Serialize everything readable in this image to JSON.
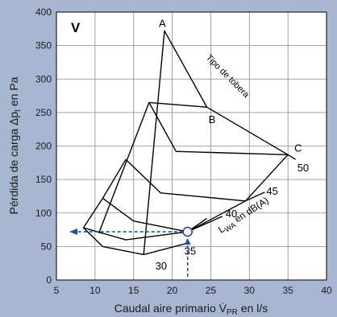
{
  "chart_data": {
    "type": "line",
    "panel_label": "V",
    "xlabel": "Caudal aire primario V̇",
    "xlabel_sub": "PR",
    "xlabel_unit": " en l/s",
    "ylabel": "Pérdida de carga Δp",
    "ylabel_sub": "t",
    "ylabel_unit": " en Pa",
    "xlim": [
      5,
      40
    ],
    "ylim": [
      0,
      400
    ],
    "xticks": [
      5,
      10,
      15,
      20,
      25,
      30,
      35,
      40
    ],
    "yticks": [
      0,
      50,
      100,
      150,
      200,
      250,
      300,
      350,
      400
    ],
    "grid": true,
    "nozzle_label": "Tipo de tobera",
    "noise_label_prefix": "L",
    "noise_label_sub": "WA",
    "noise_label_suffix": " en dB(A)",
    "nozzle_types": [
      {
        "name": "A",
        "x": 19,
        "y": 372
      },
      {
        "name": "B",
        "x": 24.5,
        "y": 258
      },
      {
        "name": "C",
        "x": 35,
        "y": 187
      }
    ],
    "nozzle_curves": [
      {
        "points": [
          [
            16.3,
            38
          ],
          [
            19,
            372
          ],
          [
            24.5,
            258
          ],
          [
            35,
            187
          ],
          [
            29.5,
            118
          ],
          [
            22,
            72
          ]
        ]
      },
      {
        "points": [
          [
            10.5,
            70
          ],
          [
            17,
            265
          ],
          [
            24.5,
            258
          ]
        ]
      },
      {
        "points": [
          [
            11,
            50
          ],
          [
            8.5,
            78
          ],
          [
            11,
            122
          ],
          [
            14,
            180
          ]
        ]
      }
    ],
    "noise_levels": [
      {
        "label": "30",
        "points": [
          [
            11,
            50
          ],
          [
            16.3,
            38
          ],
          [
            22,
            55
          ]
        ]
      },
      {
        "label": "35",
        "points": [
          [
            8.5,
            78
          ],
          [
            14,
            60
          ],
          [
            22,
            72
          ],
          [
            24.5,
            92
          ]
        ]
      },
      {
        "label": "40",
        "points": [
          [
            11,
            122
          ],
          [
            15,
            88
          ],
          [
            22,
            72
          ],
          [
            26.5,
            95
          ]
        ]
      },
      {
        "label": "45",
        "points": [
          [
            14,
            180
          ],
          [
            18.5,
            130
          ],
          [
            29.5,
            118
          ],
          [
            32,
            131
          ]
        ]
      },
      {
        "label": "50",
        "points": [
          [
            17,
            265
          ],
          [
            20.5,
            192
          ],
          [
            35,
            187
          ],
          [
            36,
            180
          ]
        ]
      }
    ],
    "example_point": {
      "x": 22,
      "y": 72
    }
  }
}
